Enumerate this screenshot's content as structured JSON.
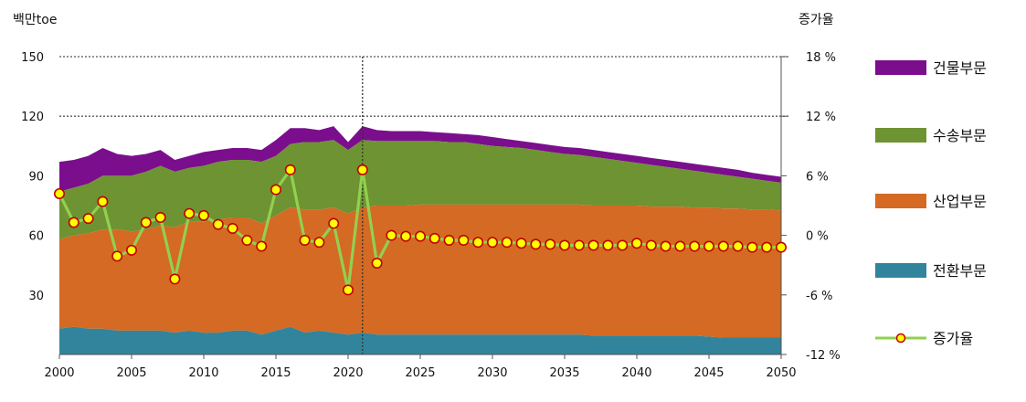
{
  "chart_data": {
    "type": "area",
    "y_left_label": "백만toe",
    "y_right_label": "증가율",
    "y_left_ticks": [
      "150",
      "120",
      "90",
      "60",
      "30"
    ],
    "y_right_ticks": [
      "18 %",
      "12 %",
      "6 %",
      "0 %",
      "-6 %",
      "-12 %"
    ],
    "x_ticks": [
      "2000",
      "2005",
      "2010",
      "2015",
      "2020",
      "2025",
      "2030",
      "2035",
      "2040",
      "2045",
      "2050"
    ],
    "ylim_left": [
      0,
      150
    ],
    "ylim_right": [
      -12,
      18
    ],
    "xlim": [
      2000,
      2050
    ],
    "forecast_divider_year": 2021,
    "x": [
      2000,
      2001,
      2002,
      2003,
      2004,
      2005,
      2006,
      2007,
      2008,
      2009,
      2010,
      2011,
      2012,
      2013,
      2014,
      2015,
      2016,
      2017,
      2018,
      2019,
      2020,
      2021,
      2022,
      2023,
      2024,
      2025,
      2026,
      2027,
      2028,
      2029,
      2030,
      2031,
      2032,
      2033,
      2034,
      2035,
      2036,
      2037,
      2038,
      2039,
      2040,
      2041,
      2042,
      2043,
      2044,
      2045,
      2046,
      2047,
      2048,
      2049,
      2050
    ],
    "series": [
      {
        "name": "전환부문",
        "color": "#31849b",
        "values": [
          13,
          14,
          13,
          13,
          12,
          12,
          12,
          12,
          11,
          12,
          11,
          11,
          12,
          12,
          10,
          12,
          14,
          11,
          12,
          11,
          10,
          11,
          10,
          10,
          10,
          10,
          10,
          10,
          10,
          10,
          10,
          10,
          10,
          10,
          10,
          10,
          10,
          9.5,
          9.5,
          9.5,
          9.5,
          9.5,
          9.5,
          9.5,
          9.5,
          9,
          8.5,
          8.5,
          8.5,
          8.5,
          8.5
        ]
      },
      {
        "name": "산업부문",
        "color": "#d46a23",
        "values": [
          58,
          60,
          61,
          63,
          63,
          62,
          63,
          65,
          64,
          67,
          67,
          68,
          69,
          69,
          66,
          70,
          74,
          73,
          73,
          74,
          71,
          74,
          75,
          75,
          75,
          75.5,
          75.5,
          75.5,
          75.5,
          75.5,
          75.5,
          75.5,
          75.5,
          75.5,
          75.5,
          75.5,
          75.5,
          75,
          75,
          75,
          75,
          74.5,
          74.5,
          74.5,
          74,
          74,
          73.5,
          73.5,
          73,
          73,
          72.5
        ]
      },
      {
        "name": "수송부문",
        "color": "#6e9332",
        "values": [
          82,
          84,
          86,
          90,
          90,
          90,
          92,
          95,
          92,
          94,
          95,
          97,
          98,
          98,
          97,
          100,
          106,
          107,
          107,
          108,
          103,
          108,
          107.5,
          107.5,
          107.5,
          107.5,
          107.5,
          107,
          107,
          106,
          105,
          104.5,
          104,
          103,
          102,
          101,
          100.5,
          99.5,
          98.5,
          97.5,
          96.5,
          95.5,
          94.5,
          93.5,
          92.5,
          91.5,
          90.5,
          89.5,
          88.5,
          87.5,
          86.5
        ]
      },
      {
        "name": "건물부문",
        "color": "#7b0e8d",
        "values": [
          97,
          98,
          100,
          104,
          101,
          100,
          101,
          103,
          98,
          100,
          102,
          103,
          104,
          104,
          103,
          108,
          114,
          114,
          113,
          115,
          107,
          115,
          113,
          112.5,
          112.5,
          112.5,
          112,
          111.5,
          111,
          110.5,
          109.5,
          108.5,
          107.5,
          106.5,
          105.5,
          104.5,
          104,
          103,
          102,
          101,
          100,
          99,
          98,
          97,
          96,
          95,
          94,
          93,
          91.5,
          90.5,
          89.5
        ]
      }
    ],
    "growth_rate": {
      "name": "증가율",
      "line_color": "#92d050",
      "marker_fill": "#ffff00",
      "marker_edge": "#c00000",
      "values": [
        4.2,
        1.3,
        1.7,
        3.4,
        -2.1,
        -1.5,
        1.3,
        1.8,
        -4.4,
        2.2,
        2.0,
        1.1,
        0.7,
        -0.5,
        -1.1,
        4.6,
        6.6,
        -0.5,
        -0.7,
        1.2,
        -5.5,
        6.6,
        -2.8,
        0.0,
        -0.1,
        -0.1,
        -0.3,
        -0.5,
        -0.5,
        -0.7,
        -0.7,
        -0.7,
        -0.8,
        -0.9,
        -0.9,
        -1.0,
        -1.0,
        -1.0,
        -1.0,
        -1.0,
        -0.8,
        -1.0,
        -1.1,
        -1.1,
        -1.1,
        -1.1,
        -1.1,
        -1.1,
        -1.2,
        -1.2,
        -1.2
      ]
    },
    "legend": [
      {
        "label": "건물부문",
        "kind": "area",
        "color": "#7b0e8d"
      },
      {
        "label": "수송부문",
        "kind": "area",
        "color": "#6e9332"
      },
      {
        "label": "산업부문",
        "kind": "area",
        "color": "#d46a23"
      },
      {
        "label": "전환부문",
        "kind": "area",
        "color": "#31849b"
      },
      {
        "label": "증가율",
        "kind": "line",
        "color": "#92d050"
      }
    ],
    "legend_position": "right",
    "gridlines": "dotted horizontal"
  }
}
